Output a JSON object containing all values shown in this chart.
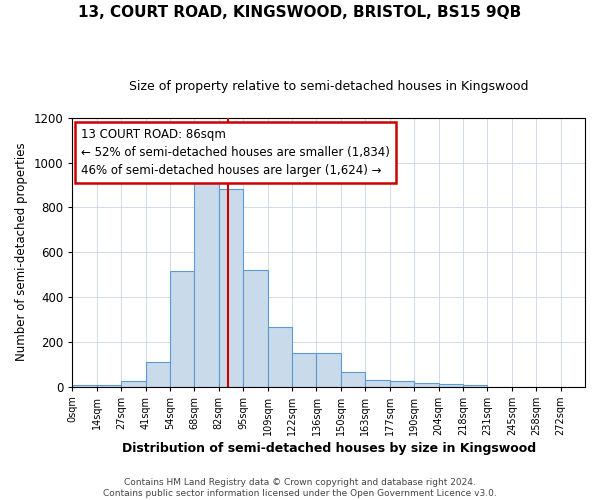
{
  "title": "13, COURT ROAD, KINGSWOOD, BRISTOL, BS15 9QB",
  "subtitle": "Size of property relative to semi-detached houses in Kingswood",
  "xlabel": "Distribution of semi-detached houses by size in Kingswood",
  "ylabel": "Number of semi-detached properties",
  "bin_edges": [
    0,
    13.5,
    27,
    40.5,
    54,
    67.5,
    81,
    94.5,
    108,
    121.5,
    135,
    148.5,
    162,
    175.5,
    189,
    202.5,
    216,
    229.5,
    243,
    256.5,
    270,
    283.5
  ],
  "bar_heights": [
    5,
    5,
    25,
    110,
    515,
    940,
    880,
    520,
    265,
    150,
    150,
    65,
    30,
    25,
    15,
    10,
    5,
    0,
    0,
    0,
    0
  ],
  "bar_color": "#c9daea",
  "bar_edge_color": "#5b9bd5",
  "property_size": 86,
  "vline_color": "#cc0000",
  "annotation_line1": "13 COURT ROAD: 86sqm",
  "annotation_line2": "← 52% of semi-detached houses are smaller (1,834)",
  "annotation_line3": "46% of semi-detached houses are larger (1,624) →",
  "annotation_box_color": "#cc0000",
  "ylim": [
    0,
    1200
  ],
  "yticks": [
    0,
    200,
    400,
    600,
    800,
    1000,
    1200
  ],
  "xtick_labels": [
    "0sqm",
    "14sqm",
    "27sqm",
    "41sqm",
    "54sqm",
    "68sqm",
    "82sqm",
    "95sqm",
    "109sqm",
    "122sqm",
    "136sqm",
    "150sqm",
    "163sqm",
    "177sqm",
    "190sqm",
    "204sqm",
    "218sqm",
    "231sqm",
    "245sqm",
    "258sqm",
    "272sqm"
  ],
  "footer_line1": "Contains HM Land Registry data © Crown copyright and database right 2024.",
  "footer_line2": "Contains public sector information licensed under the Open Government Licence v3.0.",
  "background_color": "#ffffff",
  "grid_color": "#c8d4e8"
}
